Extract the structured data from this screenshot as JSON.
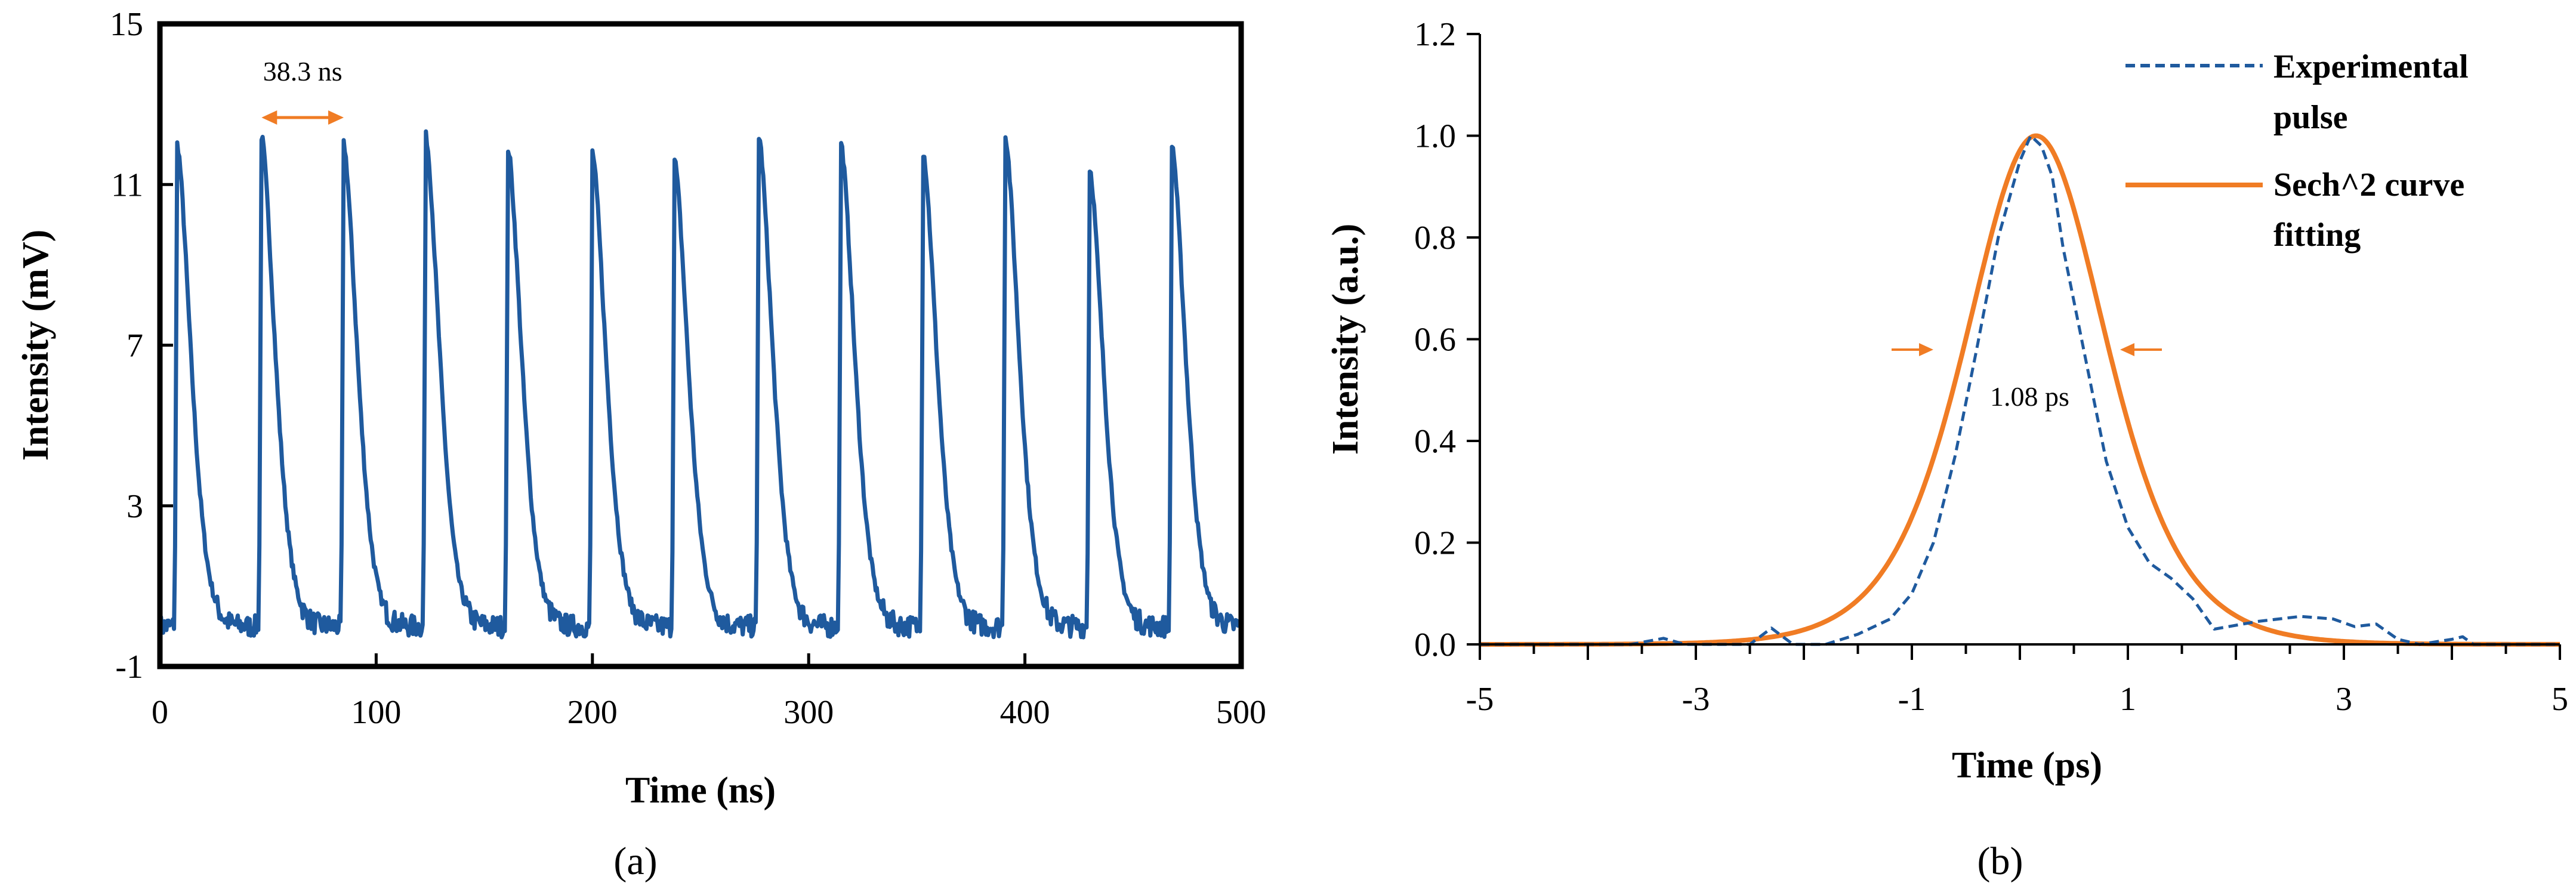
{
  "colors": {
    "trace": "#1f5a9e",
    "dashed": "#1f5a9e",
    "fit": "#f07c24",
    "arrow": "#f07c24",
    "axis": "#000000"
  },
  "chart_data": [
    {
      "panel": "a",
      "caption": "(a)",
      "type": "line",
      "xlabel": "Time (ns)",
      "ylabel": "Intensity (mV)",
      "xlim": [
        0,
        500
      ],
      "ylim": [
        -1,
        15
      ],
      "xticks": [
        0,
        100,
        200,
        300,
        400,
        500
      ],
      "yticks": [
        -1,
        3,
        7,
        11,
        15
      ],
      "grid": false,
      "legend": null,
      "annotation": {
        "text": "38.3 ns",
        "x_from": 47,
        "x_to": 85,
        "y": 12.8
      },
      "series": [
        {
          "peak_times": [
            8,
            47,
            85,
            123,
            161,
            200,
            238,
            277,
            315,
            353,
            391,
            430,
            468
          ],
          "peak_values": [
            12.0,
            12.2,
            12.0,
            12.2,
            11.9,
            11.8,
            11.6,
            12.2,
            12.0,
            11.8,
            12.2,
            11.4,
            12.0
          ],
          "baseline": 0.0,
          "period": 38.3
        }
      ]
    },
    {
      "panel": "b",
      "caption": "(b)",
      "type": "line",
      "xlabel": "Time (ps)",
      "ylabel": "Intensity (a.u.)",
      "xlim": [
        -5,
        5
      ],
      "ylim": [
        0,
        1.2
      ],
      "xticks": [
        -5,
        -3,
        -1,
        1,
        3,
        5
      ],
      "yticks": [
        0.0,
        0.2,
        0.4,
        0.6,
        0.8,
        1.0,
        1.2
      ],
      "grid": false,
      "legend_position": "top-right",
      "annotation": {
        "text": "1.08 ps",
        "y": 0.58
      },
      "series": [
        {
          "name": "Experimental pulse",
          "style": "dashed",
          "x": [
            -5,
            -3.6,
            -3.3,
            -3.1,
            -2.5,
            -2.3,
            -2.1,
            -1.8,
            -1.5,
            -1.2,
            -1.0,
            -0.8,
            -0.6,
            -0.4,
            -0.2,
            0.0,
            0.1,
            0.2,
            0.3,
            0.4,
            0.6,
            0.8,
            1.0,
            1.2,
            1.4,
            1.6,
            1.8,
            2.2,
            2.6,
            2.9,
            3.1,
            3.3,
            3.5,
            3.7,
            4.0,
            4.1,
            4.2,
            5
          ],
          "y": [
            0.0,
            0.0,
            0.012,
            0.0,
            0.0,
            0.032,
            0.0,
            0.0,
            0.02,
            0.05,
            0.1,
            0.2,
            0.37,
            0.58,
            0.8,
            0.95,
            1.0,
            0.98,
            0.92,
            0.78,
            0.57,
            0.36,
            0.23,
            0.16,
            0.13,
            0.09,
            0.03,
            0.045,
            0.055,
            0.05,
            0.035,
            0.04,
            0.01,
            0.0,
            0.01,
            0.015,
            0.0,
            0.0
          ]
        },
        {
          "name": "Sech^2 curve fitting",
          "style": "solid",
          "function": "sech2",
          "center": 0.15,
          "fwhm": 1.54,
          "amplitude": 1.0
        }
      ],
      "legend_entries": [
        {
          "series": 0,
          "lines": [
            "Experimental",
            "pulse"
          ]
        },
        {
          "series": 1,
          "lines": [
            "Sech^2 curve",
            "fitting"
          ]
        }
      ]
    }
  ]
}
